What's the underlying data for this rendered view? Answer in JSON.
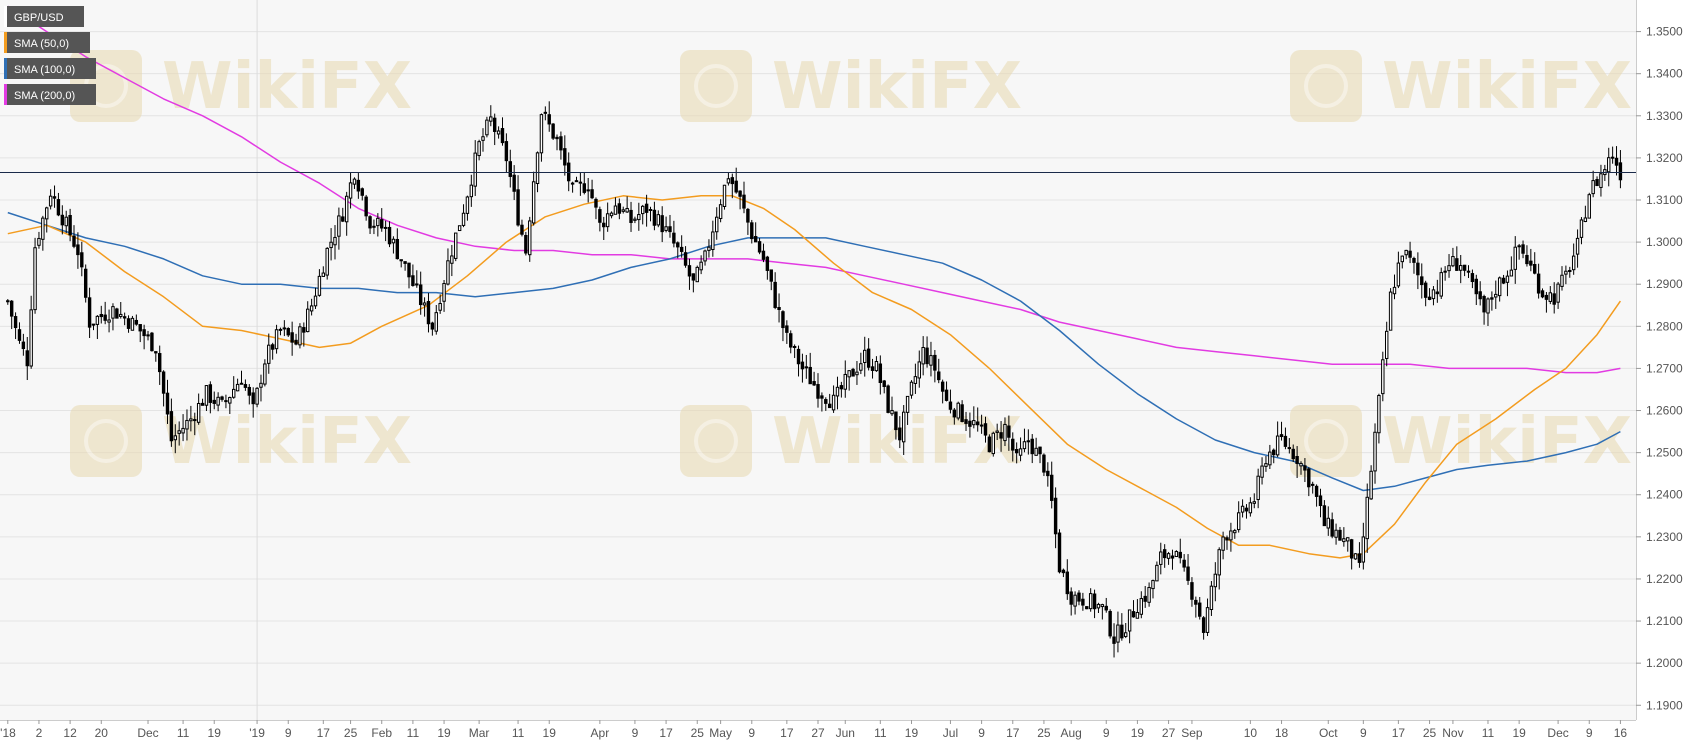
{
  "chart_data": {
    "type": "candlestick",
    "symbol": "GBP/USD",
    "legend": [
      {
        "label": "GBP/USD",
        "color": "#ffffff"
      },
      {
        "label": "SMA (50,0)",
        "color": "#f39c1f"
      },
      {
        "label": "SMA (100,0)",
        "color": "#2f6fb5"
      },
      {
        "label": "SMA (200,0)",
        "color": "#e23be2"
      }
    ],
    "last_price": "1.31652",
    "last_price_value": 1.31652,
    "ylim": [
      1.1865,
      1.3575
    ],
    "y_ticks": [
      "1.3500",
      "1.3400",
      "1.3300",
      "1.3200",
      "1.3100",
      "1.3000",
      "1.2900",
      "1.2800",
      "1.2700",
      "1.2600",
      "1.2500",
      "1.2400",
      "1.2300",
      "1.2200",
      "1.2100",
      "1.2000",
      "1.1900"
    ],
    "x_range": [
      0,
      402
    ],
    "x_tick_labels": [
      {
        "i": 0,
        "label": "'18"
      },
      {
        "i": 8,
        "label": "2"
      },
      {
        "i": 16,
        "label": "12"
      },
      {
        "i": 24,
        "label": "20"
      },
      {
        "i": 36,
        "label": "Dec"
      },
      {
        "i": 45,
        "label": "11"
      },
      {
        "i": 53,
        "label": "19"
      },
      {
        "i": 64,
        "label": "'19"
      },
      {
        "i": 72,
        "label": "9"
      },
      {
        "i": 81,
        "label": "17"
      },
      {
        "i": 88,
        "label": "25"
      },
      {
        "i": 96,
        "label": "Feb"
      },
      {
        "i": 104,
        "label": "11"
      },
      {
        "i": 112,
        "label": "19"
      },
      {
        "i": 121,
        "label": "Mar"
      },
      {
        "i": 131,
        "label": "11"
      },
      {
        "i": 139,
        "label": "19"
      },
      {
        "i": 152,
        "label": "Apr"
      },
      {
        "i": 161,
        "label": "9"
      },
      {
        "i": 169,
        "label": "17"
      },
      {
        "i": 177,
        "label": "25"
      },
      {
        "i": 183,
        "label": "May"
      },
      {
        "i": 191,
        "label": "9"
      },
      {
        "i": 200,
        "label": "17"
      },
      {
        "i": 208,
        "label": "27"
      },
      {
        "i": 215,
        "label": "Jun"
      },
      {
        "i": 224,
        "label": "11"
      },
      {
        "i": 232,
        "label": "19"
      },
      {
        "i": 242,
        "label": "Jul"
      },
      {
        "i": 250,
        "label": "9"
      },
      {
        "i": 258,
        "label": "17"
      },
      {
        "i": 266,
        "label": "25"
      },
      {
        "i": 273,
        "label": "Aug"
      },
      {
        "i": 282,
        "label": "9"
      },
      {
        "i": 290,
        "label": "19"
      },
      {
        "i": 298,
        "label": "27"
      },
      {
        "i": 304,
        "label": "Sep"
      },
      {
        "i": 319,
        "label": "10"
      },
      {
        "i": 327,
        "label": "18"
      },
      {
        "i": 339,
        "label": "Oct"
      },
      {
        "i": 348,
        "label": "9"
      },
      {
        "i": 357,
        "label": "17"
      },
      {
        "i": 365,
        "label": "25"
      },
      {
        "i": 371,
        "label": "Nov"
      },
      {
        "i": 380,
        "label": "11"
      },
      {
        "i": 388,
        "label": "19"
      },
      {
        "i": 398,
        "label": "Dec"
      },
      {
        "i": 406,
        "label": "9"
      },
      {
        "i": 414,
        "label": "16"
      }
    ],
    "close_path": [
      [
        0,
        1.286
      ],
      [
        3,
        1.276
      ],
      [
        5,
        1.272
      ],
      [
        7,
        1.299
      ],
      [
        11,
        1.312
      ],
      [
        14,
        1.306
      ],
      [
        18,
        1.298
      ],
      [
        21,
        1.281
      ],
      [
        27,
        1.284
      ],
      [
        33,
        1.28
      ],
      [
        38,
        1.275
      ],
      [
        42,
        1.253
      ],
      [
        47,
        1.258
      ],
      [
        51,
        1.264
      ],
      [
        55,
        1.261
      ],
      [
        60,
        1.268
      ],
      [
        63,
        1.26
      ],
      [
        66,
        1.272
      ],
      [
        70,
        1.279
      ],
      [
        74,
        1.276
      ],
      [
        78,
        1.285
      ],
      [
        82,
        1.298
      ],
      [
        86,
        1.307
      ],
      [
        89,
        1.317
      ],
      [
        93,
        1.305
      ],
      [
        97,
        1.303
      ],
      [
        101,
        1.296
      ],
      [
        105,
        1.288
      ],
      [
        109,
        1.28
      ],
      [
        113,
        1.295
      ],
      [
        117,
        1.308
      ],
      [
        121,
        1.323
      ],
      [
        124,
        1.329
      ],
      [
        128,
        1.32
      ],
      [
        131,
        1.306
      ],
      [
        133,
        1.298
      ],
      [
        135,
        1.315
      ],
      [
        137,
        1.331
      ],
      [
        141,
        1.324
      ],
      [
        145,
        1.312
      ],
      [
        149,
        1.314
      ],
      [
        152,
        1.304
      ],
      [
        156,
        1.309
      ],
      [
        160,
        1.305
      ],
      [
        164,
        1.308
      ],
      [
        168,
        1.304
      ],
      [
        172,
        1.298
      ],
      [
        176,
        1.29
      ],
      [
        179,
        1.296
      ],
      [
        182,
        1.307
      ],
      [
        185,
        1.316
      ],
      [
        188,
        1.31
      ],
      [
        191,
        1.302
      ],
      [
        194,
        1.296
      ],
      [
        197,
        1.286
      ],
      [
        200,
        1.277
      ],
      [
        204,
        1.27
      ],
      [
        208,
        1.265
      ],
      [
        212,
        1.262
      ],
      [
        216,
        1.268
      ],
      [
        220,
        1.273
      ],
      [
        223,
        1.27
      ],
      [
        226,
        1.261
      ],
      [
        229,
        1.254
      ],
      [
        232,
        1.265
      ],
      [
        235,
        1.274
      ],
      [
        238,
        1.27
      ],
      [
        241,
        1.262
      ],
      [
        245,
        1.259
      ],
      [
        249,
        1.256
      ],
      [
        252,
        1.252
      ],
      [
        256,
        1.256
      ],
      [
        259,
        1.248
      ],
      [
        262,
        1.253
      ],
      [
        266,
        1.247
      ],
      [
        268,
        1.238
      ],
      [
        270,
        1.223
      ],
      [
        273,
        1.216
      ],
      [
        277,
        1.215
      ],
      [
        281,
        1.213
      ],
      [
        284,
        1.206
      ],
      [
        287,
        1.209
      ],
      [
        290,
        1.214
      ],
      [
        293,
        1.217
      ],
      [
        296,
        1.225
      ],
      [
        299,
        1.227
      ],
      [
        302,
        1.221
      ],
      [
        305,
        1.215
      ],
      [
        307,
        1.208
      ],
      [
        309,
        1.217
      ],
      [
        312,
        1.23
      ],
      [
        316,
        1.234
      ],
      [
        320,
        1.239
      ],
      [
        323,
        1.249
      ],
      [
        327,
        1.253
      ],
      [
        331,
        1.249
      ],
      [
        335,
        1.242
      ],
      [
        338,
        1.233
      ],
      [
        341,
        1.231
      ],
      [
        344,
        1.228
      ],
      [
        347,
        1.222
      ],
      [
        350,
        1.246
      ],
      [
        352,
        1.262
      ],
      [
        355,
        1.287
      ],
      [
        358,
        1.298
      ],
      [
        361,
        1.294
      ],
      [
        364,
        1.288
      ],
      [
        367,
        1.289
      ],
      [
        370,
        1.295
      ],
      [
        373,
        1.295
      ],
      [
        376,
        1.289
      ],
      [
        379,
        1.283
      ],
      [
        382,
        1.289
      ],
      [
        385,
        1.293
      ],
      [
        388,
        1.299
      ],
      [
        391,
        1.294
      ],
      [
        394,
        1.288
      ],
      [
        397,
        1.287
      ],
      [
        400,
        1.292
      ],
      [
        403,
        1.299
      ],
      [
        406,
        1.312
      ],
      [
        409,
        1.316
      ],
      [
        412,
        1.321
      ],
      [
        414,
        1.3165
      ]
    ],
    "sma_50_path": [
      [
        0,
        1.302
      ],
      [
        10,
        1.304
      ],
      [
        20,
        1.3
      ],
      [
        30,
        1.293
      ],
      [
        40,
        1.287
      ],
      [
        50,
        1.28
      ],
      [
        60,
        1.279
      ],
      [
        70,
        1.277
      ],
      [
        80,
        1.275
      ],
      [
        88,
        1.276
      ],
      [
        96,
        1.28
      ],
      [
        108,
        1.285
      ],
      [
        118,
        1.292
      ],
      [
        128,
        1.3
      ],
      [
        138,
        1.306
      ],
      [
        148,
        1.309
      ],
      [
        158,
        1.311
      ],
      [
        168,
        1.31
      ],
      [
        178,
        1.311
      ],
      [
        186,
        1.311
      ],
      [
        194,
        1.308
      ],
      [
        202,
        1.303
      ],
      [
        212,
        1.295
      ],
      [
        222,
        1.288
      ],
      [
        232,
        1.284
      ],
      [
        242,
        1.278
      ],
      [
        252,
        1.27
      ],
      [
        262,
        1.261
      ],
      [
        272,
        1.252
      ],
      [
        282,
        1.246
      ],
      [
        292,
        1.241
      ],
      [
        300,
        1.237
      ],
      [
        308,
        1.232
      ],
      [
        316,
        1.228
      ],
      [
        324,
        1.228
      ],
      [
        334,
        1.226
      ],
      [
        342,
        1.225
      ],
      [
        348,
        1.226
      ],
      [
        356,
        1.233
      ],
      [
        364,
        1.243
      ],
      [
        372,
        1.252
      ],
      [
        382,
        1.258
      ],
      [
        392,
        1.265
      ],
      [
        400,
        1.27
      ],
      [
        408,
        1.278
      ],
      [
        414,
        1.286
      ]
    ],
    "sma_100_path": [
      [
        0,
        1.307
      ],
      [
        10,
        1.304
      ],
      [
        20,
        1.301
      ],
      [
        30,
        1.299
      ],
      [
        40,
        1.296
      ],
      [
        50,
        1.292
      ],
      [
        60,
        1.29
      ],
      [
        70,
        1.29
      ],
      [
        80,
        1.289
      ],
      [
        90,
        1.289
      ],
      [
        100,
        1.288
      ],
      [
        110,
        1.288
      ],
      [
        120,
        1.287
      ],
      [
        130,
        1.288
      ],
      [
        140,
        1.289
      ],
      [
        150,
        1.291
      ],
      [
        160,
        1.294
      ],
      [
        170,
        1.296
      ],
      [
        180,
        1.299
      ],
      [
        190,
        1.301
      ],
      [
        200,
        1.301
      ],
      [
        210,
        1.301
      ],
      [
        220,
        1.299
      ],
      [
        230,
        1.297
      ],
      [
        240,
        1.295
      ],
      [
        250,
        1.291
      ],
      [
        260,
        1.286
      ],
      [
        270,
        1.279
      ],
      [
        280,
        1.271
      ],
      [
        290,
        1.264
      ],
      [
        300,
        1.258
      ],
      [
        310,
        1.253
      ],
      [
        320,
        1.25
      ],
      [
        330,
        1.248
      ],
      [
        340,
        1.244
      ],
      [
        348,
        1.241
      ],
      [
        356,
        1.242
      ],
      [
        364,
        1.244
      ],
      [
        372,
        1.246
      ],
      [
        380,
        1.247
      ],
      [
        390,
        1.248
      ],
      [
        400,
        1.25
      ],
      [
        408,
        1.252
      ],
      [
        414,
        1.255
      ]
    ],
    "sma_200_path": [
      [
        0,
        1.356
      ],
      [
        10,
        1.35
      ],
      [
        20,
        1.344
      ],
      [
        30,
        1.339
      ],
      [
        40,
        1.334
      ],
      [
        50,
        1.33
      ],
      [
        60,
        1.325
      ],
      [
        70,
        1.319
      ],
      [
        80,
        1.314
      ],
      [
        90,
        1.308
      ],
      [
        100,
        1.304
      ],
      [
        110,
        1.301
      ],
      [
        120,
        1.299
      ],
      [
        130,
        1.298
      ],
      [
        140,
        1.298
      ],
      [
        150,
        1.297
      ],
      [
        160,
        1.297
      ],
      [
        170,
        1.296
      ],
      [
        180,
        1.296
      ],
      [
        190,
        1.296
      ],
      [
        200,
        1.295
      ],
      [
        210,
        1.294
      ],
      [
        220,
        1.292
      ],
      [
        230,
        1.29
      ],
      [
        240,
        1.288
      ],
      [
        250,
        1.286
      ],
      [
        260,
        1.284
      ],
      [
        270,
        1.281
      ],
      [
        280,
        1.279
      ],
      [
        290,
        1.277
      ],
      [
        300,
        1.275
      ],
      [
        310,
        1.274
      ],
      [
        320,
        1.273
      ],
      [
        330,
        1.272
      ],
      [
        340,
        1.271
      ],
      [
        350,
        1.271
      ],
      [
        360,
        1.271
      ],
      [
        370,
        1.27
      ],
      [
        380,
        1.27
      ],
      [
        390,
        1.27
      ],
      [
        400,
        1.269
      ],
      [
        408,
        1.269
      ],
      [
        414,
        1.27
      ]
    ]
  },
  "watermark": {
    "text": "WikiFX",
    "color": "#e8d9b0"
  },
  "colors": {
    "plot_bg": "#f7f7f7",
    "grid": "#e4e4e4",
    "axis_text": "#555555",
    "price_line": "#1a2a4a",
    "price_tag_bg": "#1d2a44",
    "candle": "#000000"
  }
}
